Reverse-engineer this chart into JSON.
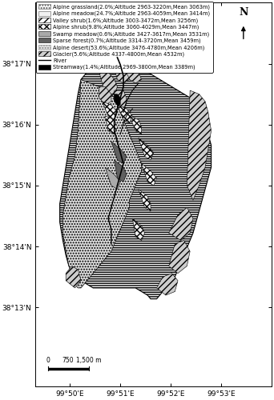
{
  "legend_items": [
    {
      "label": "Alpine grassland(2.0%;Altitude 2963-3220m,Mean 3063m)",
      "hatch": ".....",
      "facecolor": "#ffffff",
      "edgecolor": "#555555"
    },
    {
      "label": "Alpine meadow(24.7%;Altitude 2963-4059m,Mean 3414m)",
      "hatch": "",
      "facecolor": "#f2f2f2",
      "edgecolor": "#555555"
    },
    {
      "label": "Valley shrub(1.6%;Altitude 3003-3472m,Mean 3256m)",
      "hatch": "////",
      "facecolor": "#ffffff",
      "edgecolor": "#000000"
    },
    {
      "label": "Alpine shrub(9.8%;Altitude 3060-4029m,Mean 3447m)",
      "hatch": "xxxx",
      "facecolor": "#ffffff",
      "edgecolor": "#000000"
    },
    {
      "label": "Swamp meadow(0.6%;Altitude 3427-3617m,Mean 3531m)",
      "hatch": "",
      "facecolor": "#aaaaaa",
      "edgecolor": "#000000"
    },
    {
      "label": "Sparse forest(0.7%;Altitude 3314-3720m,Mean 3459m)",
      "hatch": "",
      "facecolor": "#606060",
      "edgecolor": "#000000"
    },
    {
      "label": "Alpine desert(53.6%;Altitude 3476-4780m,Mean 4206m)",
      "hatch": ".....",
      "facecolor": "#e0e0e0",
      "edgecolor": "#888888"
    },
    {
      "label": "Glacier(5.6%;Altitude 4337-4800m,Mean 4532m)",
      "hatch": "////",
      "facecolor": "#d0d0d0",
      "edgecolor": "#000000"
    },
    {
      "label": "River",
      "type": "line",
      "color": "#000000"
    },
    {
      "label": "Streamway(1.4%;Altitude 2969-3800m,Mean 3389m)",
      "hatch": "",
      "facecolor": "#000000",
      "edgecolor": "#000000"
    }
  ],
  "xticks": [
    99.8333,
    99.85,
    99.8667,
    99.8833
  ],
  "xtick_labels": [
    "99°50'E",
    "99°51'E",
    "99°52'E",
    "99°53'E"
  ],
  "yticks": [
    38.2167,
    38.2333,
    38.25,
    38.2667,
    38.2833
  ],
  "ytick_labels": [
    "38°13'N",
    "38°14'N",
    "38°15'N",
    "38°16'N",
    "38°17'N"
  ],
  "xlim": [
    99.822,
    99.9
  ],
  "ylim": [
    38.195,
    38.3
  ],
  "background_color": "#ffffff"
}
